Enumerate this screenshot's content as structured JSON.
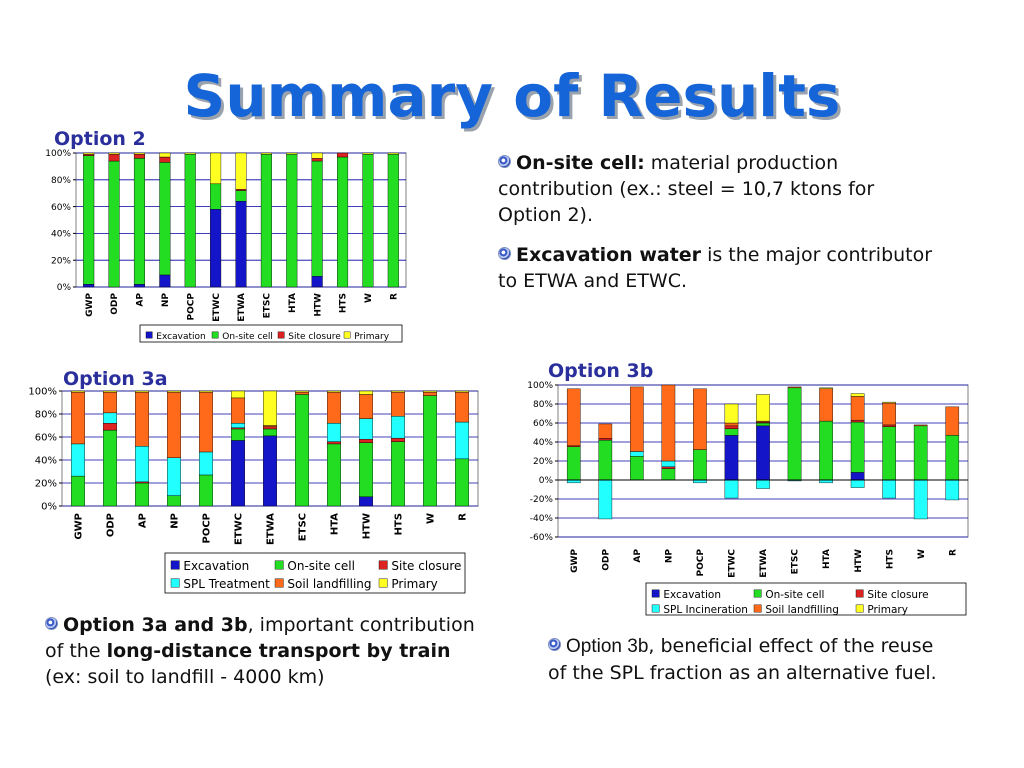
{
  "slide": {
    "title": "Summary of Results"
  },
  "bullets": {
    "b1": {
      "bold": "On-site cell:",
      "rest": " material production contribution (ex.: steel = 10,7 ktons for Option 2)."
    },
    "b2": {
      "bold": "Excavation water",
      "rest": " is the major contributor to ETWA and ETWC."
    },
    "b3": {
      "bold": "Option 3a and 3b",
      "mid1": ", important contribution of the ",
      "bold2": "long-distance transport by train",
      "rest": " (ex: soil to landfill - 4000 km)"
    },
    "b4": {
      "bold": "Option 3b",
      "rest": ", beneficial effect of the reuse of the SPL fraction as an alternative fuel."
    }
  },
  "chart_data": [
    {
      "type": "bar",
      "stacked": true,
      "title": "Option 2",
      "categories": [
        "GWP",
        "ODP",
        "AP",
        "NP",
        "POCP",
        "ETWC",
        "ETWA",
        "ETSC",
        "HTA",
        "HTW",
        "HTS",
        "W",
        "R"
      ],
      "ylim": [
        0,
        100
      ],
      "yticks": [
        "0%",
        "20%",
        "40%",
        "60%",
        "80%",
        "100%"
      ],
      "legend_position": "bottom",
      "series": [
        {
          "name": "Excavation",
          "color": "#1414c8",
          "values": [
            2,
            0,
            2,
            9,
            0,
            58,
            64,
            0,
            0,
            8,
            0,
            0,
            0
          ]
        },
        {
          "name": "On-site cell",
          "color": "#22dd22",
          "values": [
            96,
            94,
            94,
            84,
            99,
            19,
            8,
            99,
            99,
            86,
            97,
            99,
            99
          ]
        },
        {
          "name": "Site closure",
          "color": "#dd2222",
          "values": [
            1,
            5,
            3,
            4,
            0,
            0,
            1,
            0,
            0,
            2,
            3,
            0,
            0
          ]
        },
        {
          "name": "Primary",
          "color": "#ffff22",
          "values": [
            1,
            1,
            1,
            3,
            1,
            23,
            27,
            1,
            1,
            4,
            0,
            1,
            1
          ]
        }
      ]
    },
    {
      "type": "bar",
      "stacked": true,
      "title": "Option 3a",
      "categories": [
        "GWP",
        "ODP",
        "AP",
        "NP",
        "POCP",
        "ETWC",
        "ETWA",
        "ETSC",
        "HTA",
        "HTW",
        "HTS",
        "W",
        "R"
      ],
      "ylim": [
        0,
        100
      ],
      "yticks": [
        "0%",
        "20%",
        "40%",
        "60%",
        "80%",
        "100%"
      ],
      "legend_position": "bottom",
      "series": [
        {
          "name": "Excavation",
          "color": "#1414c8",
          "values": [
            0,
            0,
            0,
            0,
            0,
            57,
            61,
            0,
            0,
            8,
            0,
            0,
            0
          ]
        },
        {
          "name": "On-site cell",
          "color": "#22dd22",
          "values": [
            26,
            66,
            20,
            9,
            27,
            10,
            6,
            97,
            54,
            47,
            56,
            96,
            41
          ]
        },
        {
          "name": "Site closure",
          "color": "#dd2222",
          "values": [
            0,
            6,
            1,
            0,
            0,
            1,
            2,
            0,
            2,
            3,
            3,
            0,
            0
          ]
        },
        {
          "name": "SPL Treatment",
          "color": "#22ffff",
          "values": [
            28,
            9,
            31,
            33,
            20,
            4,
            0,
            0,
            16,
            18,
            19,
            0,
            32
          ]
        },
        {
          "name": "Soil landfilling",
          "color": "#ff6a1a",
          "values": [
            45,
            18,
            47,
            57,
            52,
            22,
            1,
            2,
            27,
            21,
            21,
            3,
            26
          ]
        },
        {
          "name": "Primary",
          "color": "#ffff22",
          "values": [
            1,
            1,
            1,
            1,
            1,
            6,
            30,
            1,
            1,
            3,
            1,
            1,
            1
          ]
        }
      ]
    },
    {
      "type": "bar",
      "stacked": true,
      "title": "Option 3b",
      "categories": [
        "GWP",
        "ODP",
        "AP",
        "NP",
        "POCP",
        "ETWC",
        "ETWA",
        "ETSC",
        "HTA",
        "HTW",
        "HTS",
        "W",
        "R"
      ],
      "ylim": [
        -60,
        100
      ],
      "yticks": [
        "-60%",
        "-40%",
        "-20%",
        "0%",
        "20%",
        "40%",
        "60%",
        "80%",
        "100%"
      ],
      "legend_position": "bottom",
      "series": [
        {
          "name": "Excavation",
          "color": "#1414c8",
          "values": [
            0,
            0,
            0,
            0,
            0,
            47,
            57,
            0,
            0,
            8,
            0,
            0,
            0
          ]
        },
        {
          "name": "On-site cell",
          "color": "#22dd22",
          "values": [
            35,
            42,
            25,
            12,
            32,
            7,
            3,
            97,
            62,
            53,
            56,
            57,
            47
          ]
        },
        {
          "name": "Site closure",
          "color": "#dd2222",
          "values": [
            1,
            2,
            0,
            2,
            0,
            3,
            1,
            0,
            0,
            2,
            2,
            0,
            0
          ]
        },
        {
          "name": "SPL Incineration",
          "color": "#22ffff",
          "values": [
            -3,
            -41,
            5,
            6,
            -3,
            -19,
            -9,
            -1,
            -3,
            -8,
            -19,
            -41,
            -21
          ]
        },
        {
          "name": "Soil landfilling",
          "color": "#ff6a1a",
          "values": [
            60,
            15,
            68,
            80,
            64,
            3,
            1,
            1,
            34,
            25,
            23,
            1,
            30
          ]
        },
        {
          "name": "Primary",
          "color": "#ffff22",
          "values": [
            0,
            0,
            0,
            0,
            0,
            20,
            28,
            0,
            1,
            3,
            1,
            0,
            0
          ]
        }
      ]
    }
  ]
}
